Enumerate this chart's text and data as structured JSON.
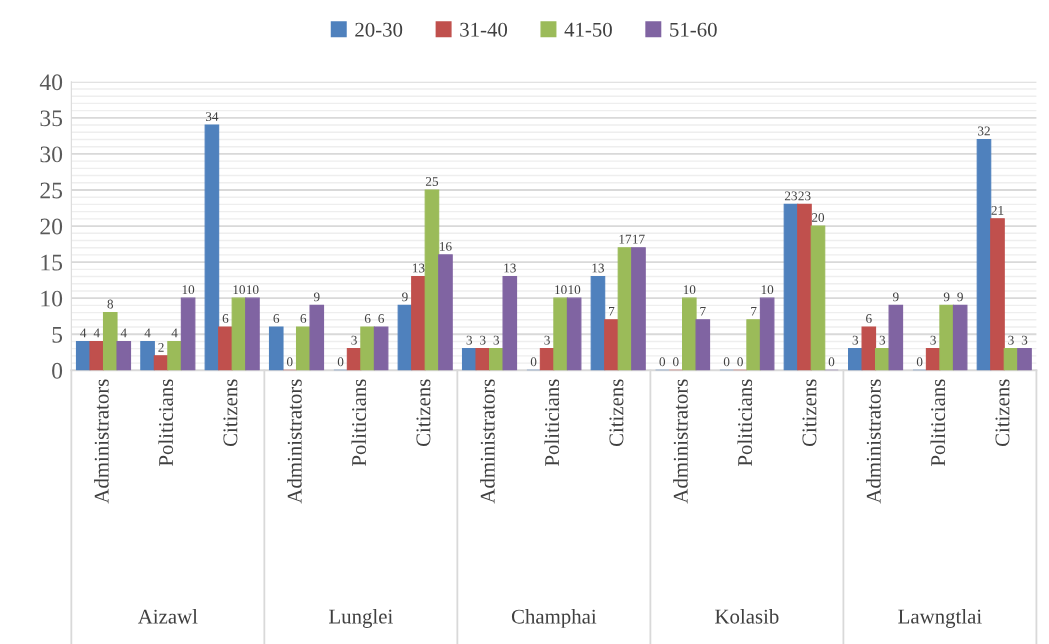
{
  "chart_data": {
    "type": "bar",
    "categories": [
      "Administrators",
      "Politicians",
      "Citizens",
      "Administrators",
      "Politicians",
      "Citizens",
      "Administrators",
      "Politicians",
      "Citizens",
      "Administrators",
      "Politicians",
      "Citizens",
      "Administrators",
      "Politicians",
      "Citizens"
    ],
    "series": [
      {
        "name": "20-30",
        "color": "#4f81bd",
        "values": [
          4,
          4,
          34,
          6,
          0,
          9,
          3,
          0,
          13,
          0,
          0,
          23,
          3,
          0,
          32
        ]
      },
      {
        "name": "31-40",
        "color": "#c0504d",
        "values": [
          4,
          2,
          6,
          0,
          3,
          13,
          3,
          3,
          7,
          0,
          0,
          23,
          6,
          3,
          21
        ]
      },
      {
        "name": "41-50",
        "color": "#9bbb59",
        "values": [
          8,
          4,
          10,
          6,
          6,
          25,
          3,
          10,
          17,
          10,
          7,
          20,
          3,
          9,
          3
        ]
      },
      {
        "name": "51-60",
        "color": "#8064a2",
        "values": [
          4,
          10,
          10,
          9,
          6,
          16,
          13,
          10,
          17,
          7,
          10,
          0,
          9,
          9,
          3
        ]
      }
    ],
    "ylim": [
      0,
      40
    ],
    "yticks": [
      0,
      {
        "value": 1,
        "label": null
      },
      {
        "value": 2,
        "label": null
      },
      {
        "value": 3,
        "label": null
      },
      {
        "value": 4,
        "label": null
      },
      5,
      {
        "value": 6,
        "label": null
      },
      {
        "value": 7,
        "label": null
      },
      {
        "value": 8,
        "label": null
      },
      {
        "value": 9,
        "label": null
      },
      10,
      {
        "value": 11,
        "label": null
      },
      {
        "value": 12,
        "label": null
      },
      {
        "value": 13,
        "label": null
      },
      {
        "value": 14,
        "label": null
      },
      15,
      {
        "value": 16,
        "label": null
      },
      {
        "value": 17,
        "label": null
      },
      {
        "value": 18,
        "label": null
      },
      {
        "value": 19,
        "label": null
      },
      20,
      {
        "value": 21,
        "label": null
      },
      {
        "value": 22,
        "label": null
      },
      {
        "value": 23,
        "label": null
      },
      {
        "value": 24,
        "label": null
      },
      25,
      {
        "value": 26,
        "label": null
      },
      {
        "value": 27,
        "label": null
      },
      {
        "value": 28,
        "label": null
      },
      {
        "value": 29,
        "label": null
      },
      30,
      {
        "value": 31,
        "label": null
      },
      {
        "value": 32,
        "label": null
      },
      {
        "value": 33,
        "label": null
      },
      {
        "value": 34,
        "label": null
      },
      35,
      {
        "value": 36,
        "label": null
      },
      {
        "value": 37,
        "label": null
      },
      {
        "value": 38,
        "label": null
      },
      {
        "value": 39,
        "label": null
      },
      40
    ],
    "grid": "y",
    "legend": "top",
    "data_labels": true,
    "annotations": [
      "Aizawl",
      "Lunglei",
      "Champhai",
      "Kolasib",
      "Lawngtlai"
    ]
  }
}
